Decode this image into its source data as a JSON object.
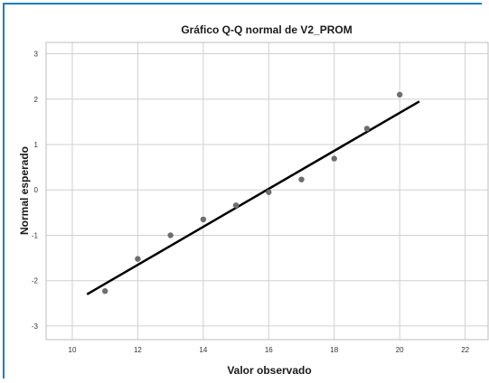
{
  "chart_data": {
    "type": "scatter",
    "title": "Gráfico Q-Q normal de V2_PROM",
    "xlabel": "Valor observado",
    "ylabel": "Normal esperado",
    "xlim": [
      9.2,
      22.7
    ],
    "ylim": [
      -3.3,
      3.25
    ],
    "x_ticks": [
      10,
      12,
      14,
      16,
      18,
      20,
      22
    ],
    "y_ticks": [
      3,
      2,
      1,
      0,
      -1,
      -2,
      -3
    ],
    "grid": true,
    "points": [
      {
        "x": 11,
        "y": -2.23
      },
      {
        "x": 12,
        "y": -1.52
      },
      {
        "x": 13,
        "y": -1.0
      },
      {
        "x": 14,
        "y": -0.65
      },
      {
        "x": 15,
        "y": -0.34
      },
      {
        "x": 16,
        "y": -0.05
      },
      {
        "x": 17,
        "y": 0.23
      },
      {
        "x": 18,
        "y": 0.69
      },
      {
        "x": 19,
        "y": 1.35
      },
      {
        "x": 20,
        "y": 2.1
      }
    ],
    "reference_line": {
      "x1": 10.45,
      "y1": -2.3,
      "x2": 20.6,
      "y2": 1.95
    },
    "colors": {
      "point": "#6e6e6e",
      "line": "#000000",
      "grid": "#d0d0d0",
      "frame": "#1f7fc1"
    }
  }
}
